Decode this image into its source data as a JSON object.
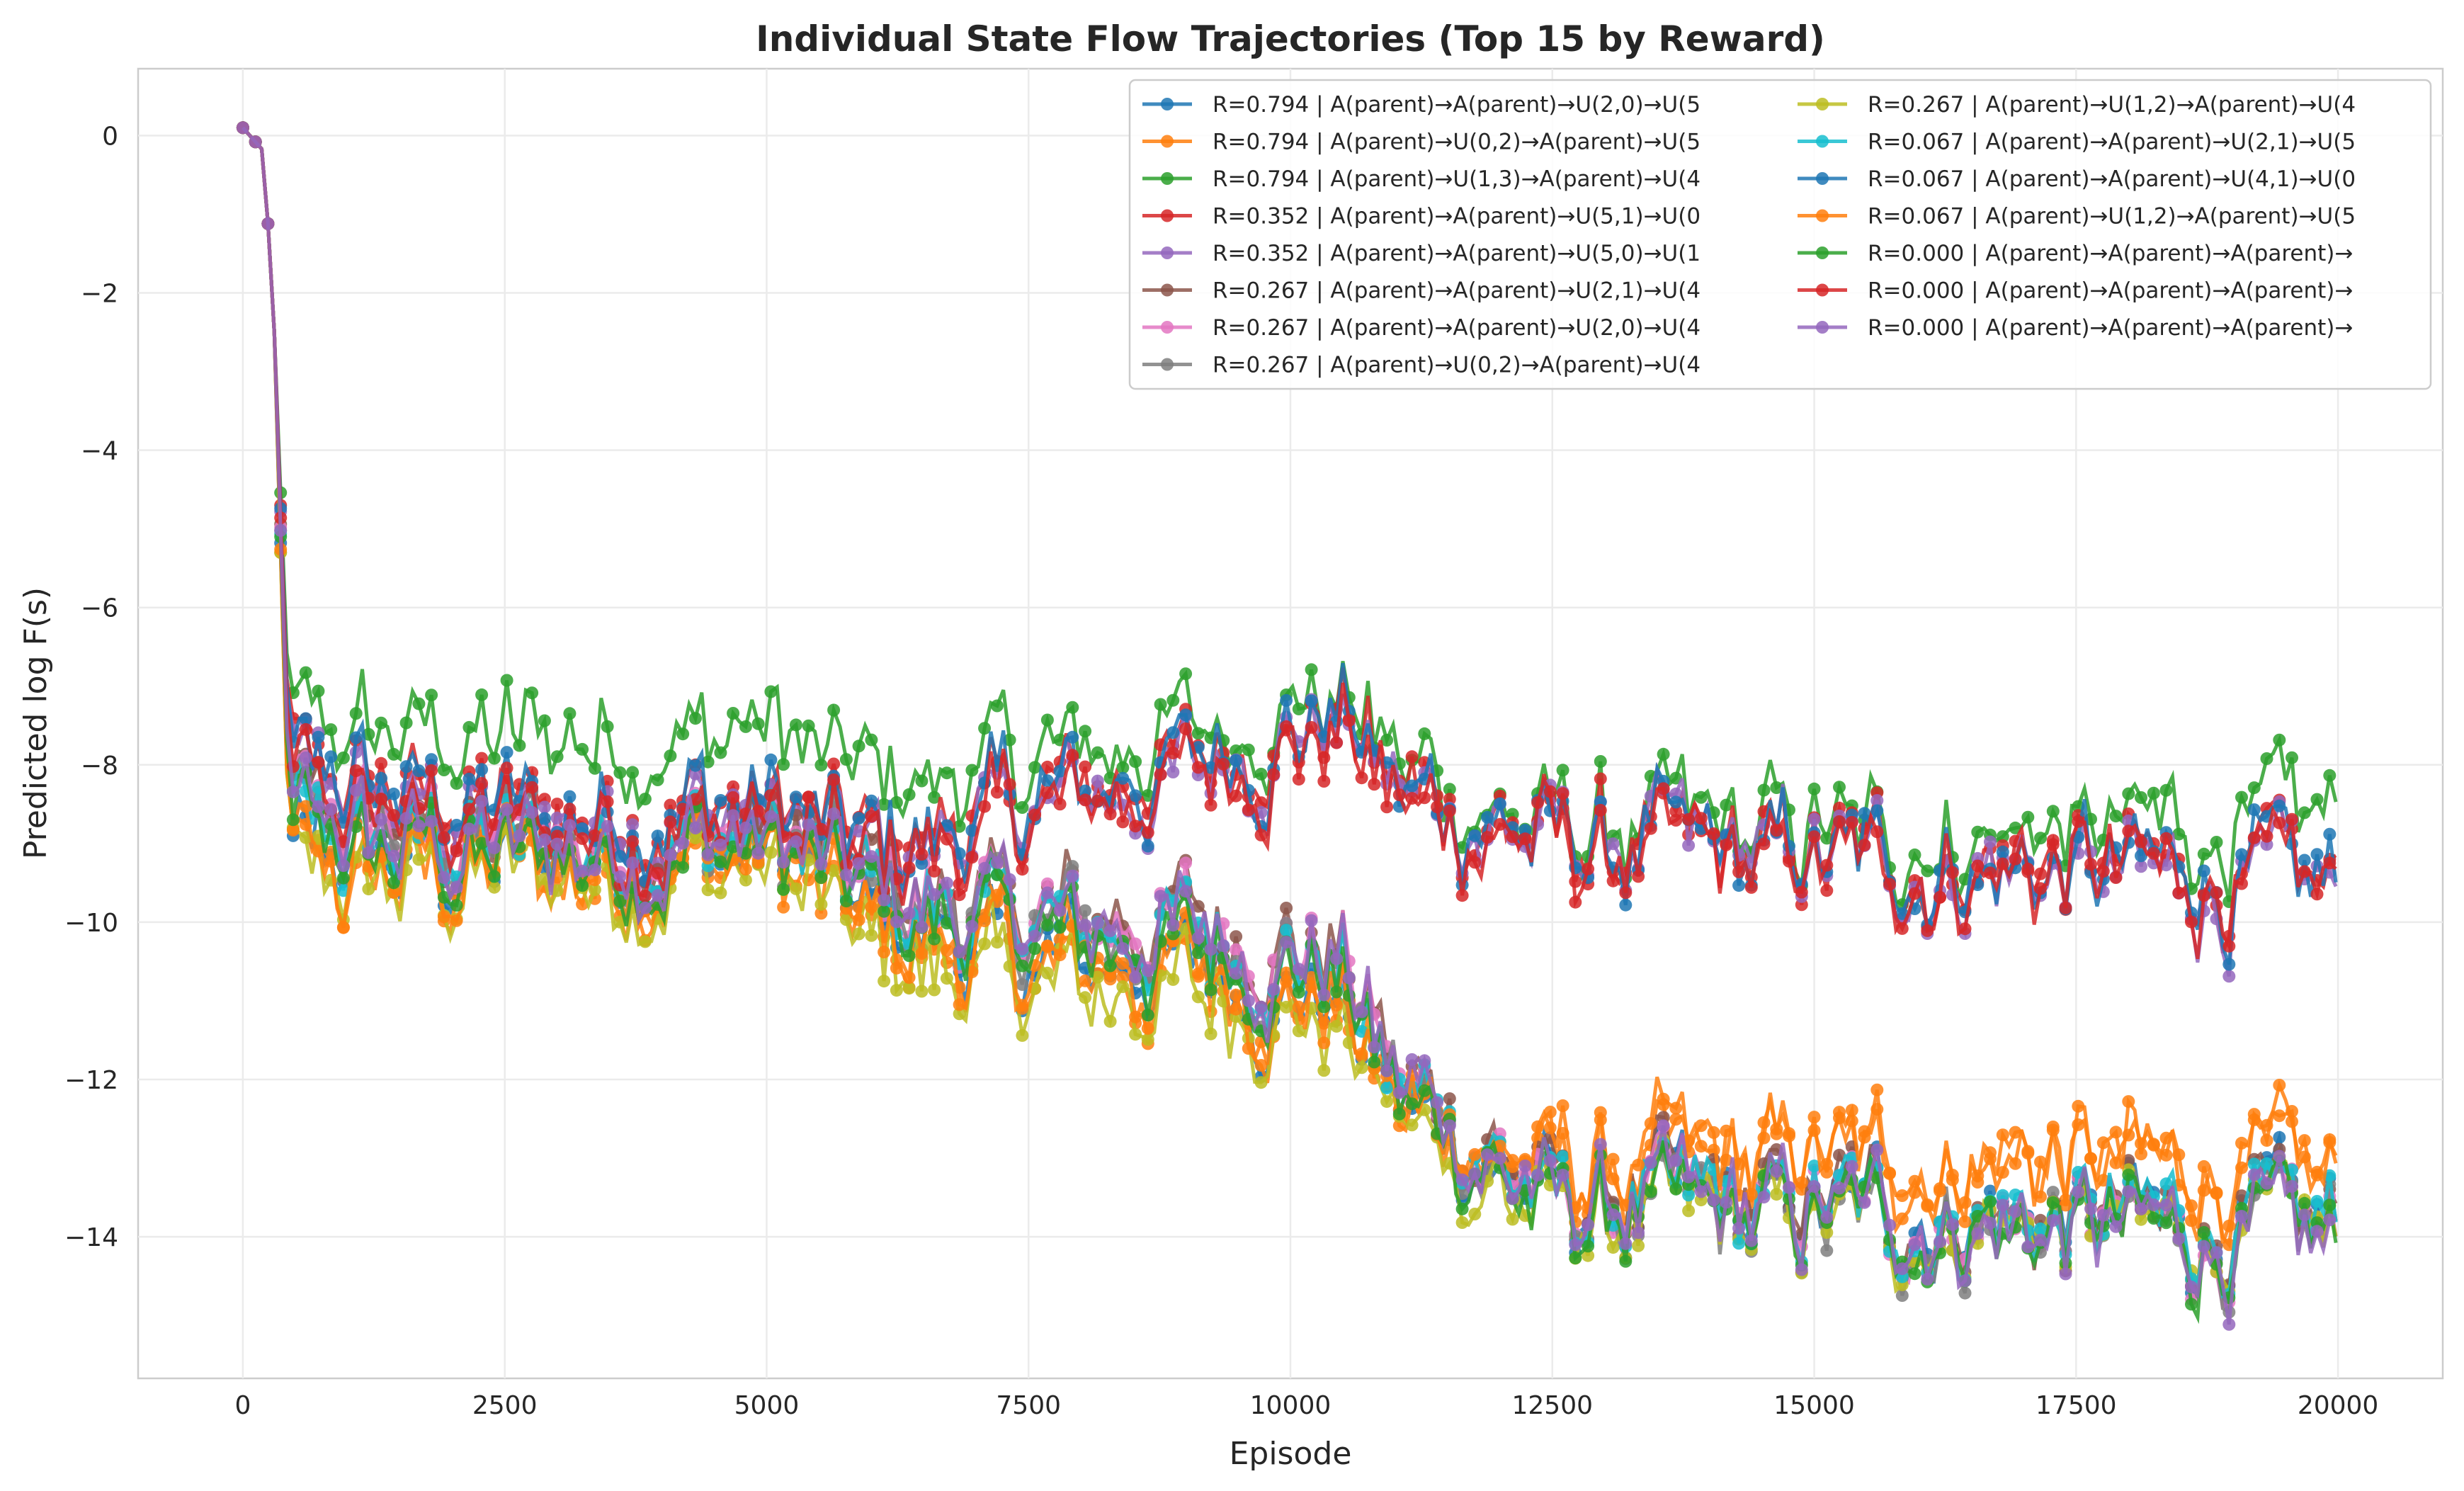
{
  "chart_data": {
    "type": "line",
    "title": "Individual State Flow Trajectories (Top 15 by Reward)",
    "xlabel": "Episode",
    "ylabel": "Predicted log F(s)",
    "xlim": [
      -1000,
      21000
    ],
    "ylim": [
      -15.8,
      0.85
    ],
    "x_ticks": [
      0,
      2500,
      5000,
      7500,
      10000,
      12500,
      15000,
      17500,
      20000
    ],
    "x_tick_labels": [
      "0",
      "2500",
      "5000",
      "7500",
      "10000",
      "12500",
      "15000",
      "17500",
      "20000"
    ],
    "y_ticks": [
      0,
      -2,
      -4,
      -6,
      -8,
      -10,
      -12,
      -14
    ],
    "y_tick_labels": [
      "0",
      "−2",
      "−4",
      "−6",
      "−8",
      "−10",
      "−12",
      "−14"
    ],
    "grid": true,
    "legend_position": "top-right",
    "legend_columns": 2,
    "series": [
      {
        "name": "R=0.794 | A(parent)→A(parent)→U(2,0)→U(5",
        "color": "#1f77b4",
        "x": [
          0,
          200,
          300,
          450,
          2500,
          5000,
          6000,
          7500,
          9000,
          10500,
          11000,
          12500,
          15000,
          17500,
          20000
        ],
        "values": [
          0.1,
          -0.2,
          -2.5,
          -9.2,
          -9.2,
          -8.9,
          -10.0,
          -10.5,
          -10.6,
          -11.0,
          -12.3,
          -13.6,
          -13.7,
          -13.8,
          -14.0
        ]
      },
      {
        "name": "R=0.794 | A(parent)→U(0,2)→A(parent)→U(5",
        "color": "#ff7f0e",
        "x": [
          0,
          200,
          300,
          450,
          2500,
          5000,
          6000,
          7500,
          9000,
          10500,
          11000,
          12500,
          15000,
          17500,
          20000
        ],
        "values": [
          0.1,
          -0.2,
          -2.5,
          -9.5,
          -9.4,
          -9.2,
          -10.2,
          -10.6,
          -10.7,
          -11.1,
          -12.4,
          -13.2,
          -13.1,
          -13.1,
          -13.4
        ]
      },
      {
        "name": "R=0.794 | A(parent)→U(1,3)→A(parent)→U(4",
        "color": "#2ca02c",
        "x": [
          0,
          200,
          300,
          450,
          2500,
          5000,
          6000,
          7500,
          9000,
          10500,
          11000,
          12500,
          15000,
          17500,
          20000
        ],
        "values": [
          0.1,
          -0.2,
          -2.5,
          -7.6,
          -7.7,
          -7.5,
          -8.3,
          -8.0,
          -7.6,
          -7.0,
          -8.0,
          -8.8,
          -8.9,
          -8.8,
          -8.9
        ]
      },
      {
        "name": "R=0.352 | A(parent)→A(parent)→U(5,1)→U(0",
        "color": "#d62728",
        "x": [
          0,
          200,
          300,
          450,
          2500,
          5000,
          6000,
          7500,
          9000,
          10500,
          11000,
          12500,
          15000,
          17500,
          20000
        ],
        "values": [
          0.1,
          -0.2,
          -2.5,
          -8.0,
          -8.6,
          -8.5,
          -9.1,
          -8.5,
          -8.0,
          -7.3,
          -8.3,
          -9.0,
          -9.2,
          -9.3,
          -9.6
        ]
      },
      {
        "name": "R=0.352 | A(parent)→A(parent)→U(5,0)→U(1",
        "color": "#9467bd",
        "x": [
          0,
          200,
          300,
          450,
          2500,
          5000,
          6000,
          7500,
          9000,
          10500,
          11000,
          12500,
          15000,
          17500,
          20000
        ],
        "values": [
          0.1,
          -0.2,
          -2.5,
          -8.2,
          -8.7,
          -8.6,
          -9.2,
          -8.6,
          -8.1,
          -7.4,
          -8.4,
          -9.0,
          -9.2,
          -9.4,
          -9.7
        ]
      },
      {
        "name": "R=0.267 | A(parent)→A(parent)→U(2,1)→U(4",
        "color": "#8c564b",
        "x": [
          0,
          200,
          300,
          450,
          2500,
          5000,
          6000,
          7500,
          9000,
          10500,
          11000,
          12500,
          15000,
          17500,
          20000
        ],
        "values": [
          0.1,
          -0.2,
          -2.5,
          -8.6,
          -9.0,
          -8.8,
          -9.5,
          -9.9,
          -10.0,
          -10.4,
          -11.9,
          -13.5,
          -13.6,
          -13.8,
          -14.0
        ]
      },
      {
        "name": "R=0.267 | A(parent)→A(parent)→U(2,0)→U(4",
        "color": "#e377c2",
        "x": [
          0,
          200,
          300,
          450,
          2500,
          5000,
          6000,
          7500,
          9000,
          10500,
          11000,
          12500,
          15000,
          17500,
          20000
        ],
        "values": [
          0.1,
          -0.2,
          -2.5,
          -8.7,
          -9.0,
          -8.9,
          -9.6,
          -10.0,
          -10.1,
          -10.5,
          -12.0,
          -13.6,
          -13.7,
          -13.9,
          -14.1
        ]
      },
      {
        "name": "R=0.267 | A(parent)→U(0,2)→A(parent)→U(4",
        "color": "#7f7f7f",
        "x": [
          0,
          200,
          300,
          450,
          2500,
          5000,
          6000,
          7500,
          9000,
          10500,
          11000,
          12500,
          15000,
          17500,
          20000
        ],
        "values": [
          0.1,
          -0.2,
          -2.5,
          -8.8,
          -9.1,
          -9.0,
          -9.7,
          -10.1,
          -10.2,
          -10.6,
          -12.1,
          -13.7,
          -13.8,
          -13.9,
          -14.1
        ]
      },
      {
        "name": "R=0.267 | A(parent)→U(1,2)→A(parent)→U(4",
        "color": "#bcbd22",
        "x": [
          0,
          200,
          300,
          450,
          2500,
          5000,
          6000,
          7500,
          9000,
          10500,
          11000,
          12500,
          15000,
          17500,
          20000
        ],
        "values": [
          0.1,
          -0.2,
          -2.5,
          -9.5,
          -9.5,
          -9.3,
          -10.4,
          -10.8,
          -10.9,
          -11.3,
          -12.6,
          -13.8,
          -13.8,
          -13.9,
          -14.1
        ]
      },
      {
        "name": "R=0.067 | A(parent)→A(parent)→U(2,1)→U(5",
        "color": "#17becf",
        "x": [
          0,
          200,
          300,
          450,
          2500,
          5000,
          6000,
          7500,
          9000,
          10500,
          11000,
          12500,
          15000,
          17500,
          20000
        ],
        "values": [
          0.1,
          -0.2,
          -2.5,
          -8.9,
          -9.1,
          -8.9,
          -9.7,
          -10.1,
          -10.2,
          -10.6,
          -12.1,
          -13.6,
          -13.7,
          -13.8,
          -14.0
        ]
      },
      {
        "name": "R=0.067 | A(parent)→A(parent)→U(4,1)→U(0",
        "color": "#1f77b4",
        "x": [
          0,
          200,
          300,
          450,
          2500,
          5000,
          6000,
          7500,
          9000,
          10500,
          11000,
          12500,
          15000,
          17500,
          20000
        ],
        "values": [
          0.1,
          -0.2,
          -2.5,
          -8.1,
          -8.6,
          -8.5,
          -9.1,
          -8.5,
          -8.0,
          -7.3,
          -8.3,
          -9.0,
          -9.2,
          -9.3,
          -9.6
        ]
      },
      {
        "name": "R=0.067 | A(parent)→U(1,2)→A(parent)→U(5",
        "color": "#ff7f0e",
        "x": [
          0,
          200,
          300,
          450,
          2500,
          5000,
          6000,
          7500,
          9000,
          10500,
          11000,
          12500,
          15000,
          17500,
          20000
        ],
        "values": [
          0.1,
          -0.2,
          -2.5,
          -9.4,
          -9.3,
          -9.1,
          -10.1,
          -10.5,
          -10.6,
          -11.0,
          -12.3,
          -13.1,
          -13.0,
          -13.0,
          -13.3
        ]
      },
      {
        "name": "R=0.000 | A(parent)→A(parent)→A(parent)→",
        "color": "#2ca02c",
        "x": [
          0,
          200,
          300,
          450,
          2500,
          5000,
          6000,
          7500,
          9000,
          10500,
          11000,
          12500,
          15000,
          17500,
          20000
        ],
        "values": [
          0.1,
          -0.2,
          -2.5,
          -9.0,
          -9.2,
          -9.0,
          -9.8,
          -10.2,
          -10.3,
          -10.7,
          -12.2,
          -13.7,
          -13.8,
          -13.9,
          -14.2
        ]
      },
      {
        "name": "R=0.000 | A(parent)→A(parent)→A(parent)→",
        "color": "#d62728",
        "x": [
          0,
          200,
          300,
          450,
          2500,
          5000,
          6000,
          7500,
          9000,
          10500,
          11000,
          12500,
          15000,
          17500,
          20000
        ],
        "values": [
          0.1,
          -0.2,
          -2.5,
          -8.4,
          -8.8,
          -8.7,
          -9.3,
          -8.7,
          -8.2,
          -7.5,
          -8.5,
          -9.1,
          -9.3,
          -9.4,
          -9.7
        ]
      },
      {
        "name": "R=0.000 | A(parent)→A(parent)→A(parent)→",
        "color": "#9467bd",
        "x": [
          0,
          200,
          300,
          450,
          2500,
          5000,
          6000,
          7500,
          9000,
          10500,
          11000,
          12500,
          15000,
          17500,
          20000
        ],
        "values": [
          0.1,
          -0.2,
          -2.5,
          -8.8,
          -9.1,
          -8.9,
          -9.6,
          -10.0,
          -10.1,
          -10.5,
          -12.0,
          -13.6,
          -13.7,
          -13.9,
          -14.2
        ]
      }
    ]
  }
}
